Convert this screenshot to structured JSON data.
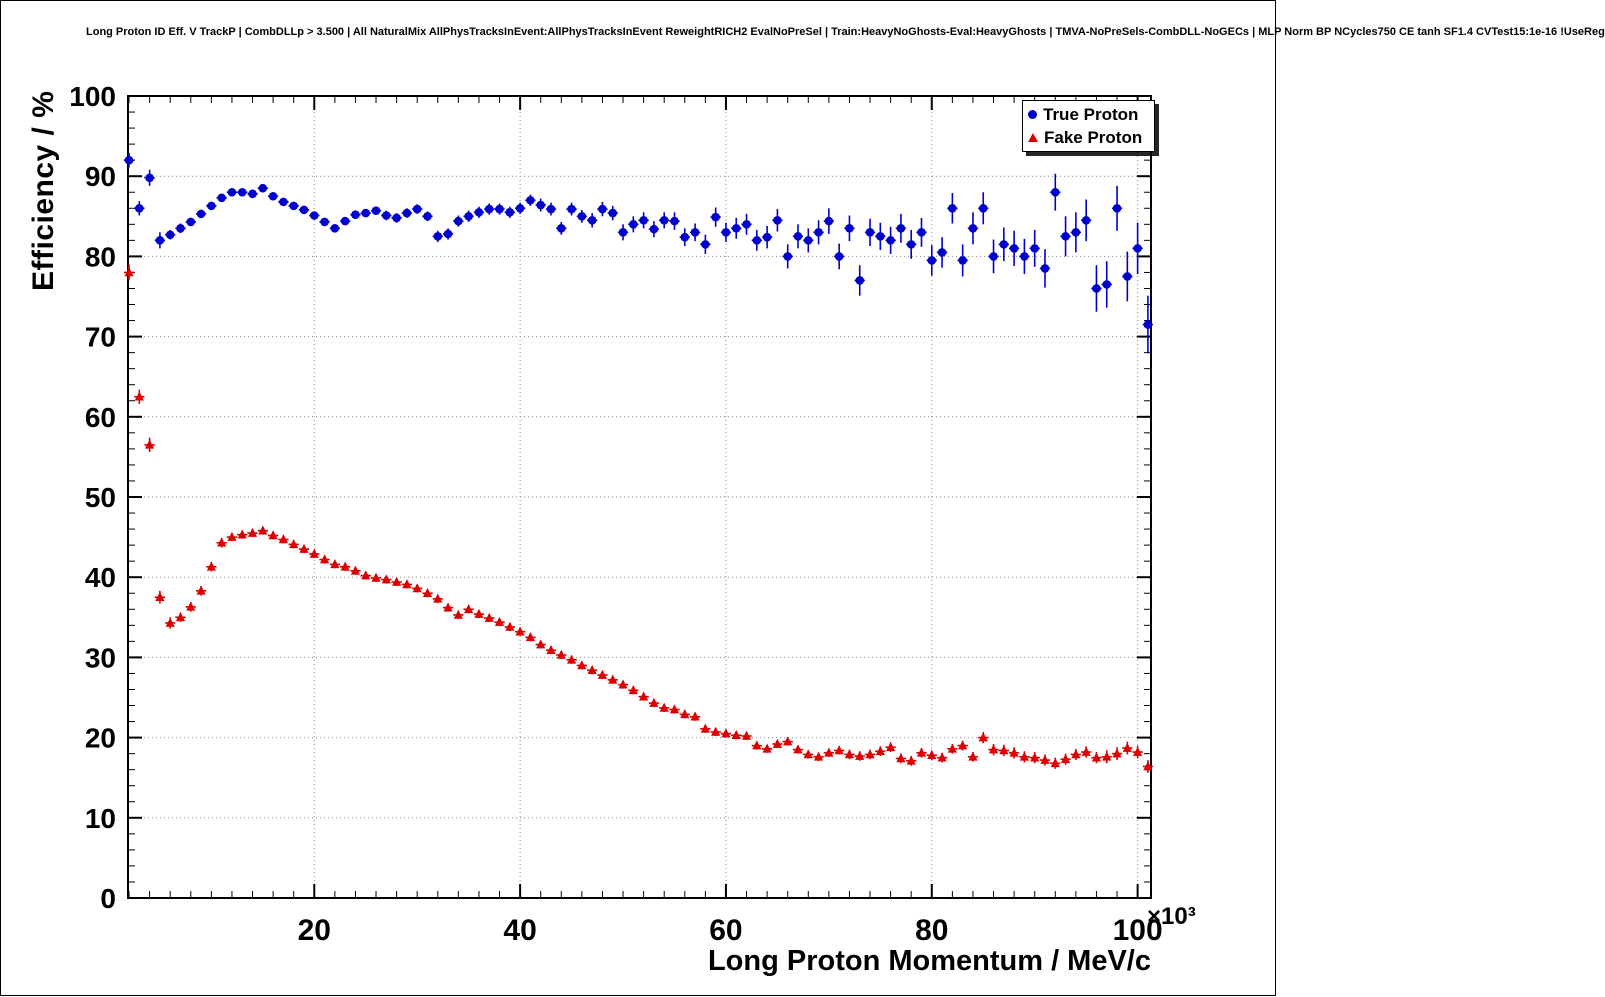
{
  "chart_data": {
    "type": "scatter",
    "title": "Long Proton ID Eff. V TrackP | CombDLLp > 3.500 | All NaturalMix AllPhysTracksInEvent:AllPhysTracksInEvent ReweightRICH2 EvalNoPreSel | Train:HeavyNoGhosts-Eval:HeavyGhosts | TMVA-NoPreSels-CombDLL-NoGECs | MLP Norm BP NCycles750 CE tanh SF1.4 CVTest15:1e-16 !UseReg",
    "xlabel": "Long Proton Momentum / MeV/c",
    "ylabel": "Efficiency / %",
    "x_multiplier": "×10³",
    "x_unit_scale": 1000,
    "xlim": [
      1.9,
      101.3
    ],
    "ylim": [
      0,
      100
    ],
    "xticks": [
      20,
      40,
      60,
      80,
      100
    ],
    "yticks": [
      0,
      10,
      20,
      30,
      40,
      50,
      60,
      70,
      80,
      90,
      100
    ],
    "minor_tick_step_x": 2,
    "minor_tick_step_y": 2,
    "grid": true,
    "legend_position": "top-right",
    "bin_half_width": 0.5,
    "colors": {
      "true_proton": "#0000cc",
      "fake_proton": "#dd0000",
      "grid": "#888888"
    },
    "series": [
      {
        "name": "True Proton",
        "marker": "circle",
        "color_key": "true_proton",
        "points": [
          [
            2,
            92.0,
            0.9
          ],
          [
            3,
            86.0,
            0.9
          ],
          [
            4,
            89.8,
            1.0
          ],
          [
            5,
            82.0,
            1.0
          ],
          [
            6,
            82.7,
            0.6
          ],
          [
            7,
            83.5,
            0.6
          ],
          [
            8,
            84.3,
            0.5
          ],
          [
            9,
            85.3,
            0.5
          ],
          [
            10,
            86.3,
            0.5
          ],
          [
            11,
            87.3,
            0.5
          ],
          [
            12,
            88.0,
            0.5
          ],
          [
            13,
            88.0,
            0.5
          ],
          [
            14,
            87.8,
            0.5
          ],
          [
            15,
            88.5,
            0.5
          ],
          [
            16,
            87.5,
            0.5
          ],
          [
            17,
            86.8,
            0.5
          ],
          [
            18,
            86.3,
            0.5
          ],
          [
            19,
            85.8,
            0.5
          ],
          [
            20,
            85.1,
            0.5
          ],
          [
            21,
            84.3,
            0.5
          ],
          [
            22,
            83.5,
            0.5
          ],
          [
            23,
            84.4,
            0.5
          ],
          [
            24,
            85.2,
            0.5
          ],
          [
            25,
            85.4,
            0.5
          ],
          [
            26,
            85.7,
            0.5
          ],
          [
            27,
            85.1,
            0.6
          ],
          [
            28,
            84.8,
            0.6
          ],
          [
            29,
            85.4,
            0.6
          ],
          [
            30,
            85.9,
            0.6
          ],
          [
            31,
            85.0,
            0.6
          ],
          [
            32,
            82.5,
            0.7
          ],
          [
            33,
            82.8,
            0.7
          ],
          [
            34,
            84.4,
            0.7
          ],
          [
            35,
            85.0,
            0.7
          ],
          [
            36,
            85.5,
            0.7
          ],
          [
            37,
            85.9,
            0.7
          ],
          [
            38,
            85.9,
            0.7
          ],
          [
            39,
            85.5,
            0.7
          ],
          [
            40,
            86.0,
            0.7
          ],
          [
            41,
            87.0,
            0.7
          ],
          [
            42,
            86.4,
            0.8
          ],
          [
            43,
            85.9,
            0.8
          ],
          [
            44,
            83.5,
            0.8
          ],
          [
            45,
            85.9,
            0.8
          ],
          [
            46,
            85.0,
            0.8
          ],
          [
            47,
            84.5,
            0.9
          ],
          [
            48,
            85.9,
            0.9
          ],
          [
            49,
            85.4,
            0.9
          ],
          [
            50,
            83.0,
            1.0
          ],
          [
            51,
            84.0,
            1.0
          ],
          [
            52,
            84.5,
            1.0
          ],
          [
            53,
            83.4,
            1.0
          ],
          [
            54,
            84.5,
            1.0
          ],
          [
            55,
            84.4,
            1.1
          ],
          [
            56,
            82.4,
            1.1
          ],
          [
            57,
            83.0,
            1.1
          ],
          [
            58,
            81.5,
            1.2
          ],
          [
            59,
            84.9,
            1.2
          ],
          [
            60,
            83.0,
            1.2
          ],
          [
            61,
            83.5,
            1.3
          ],
          [
            62,
            84.0,
            1.3
          ],
          [
            63,
            82.0,
            1.3
          ],
          [
            64,
            82.4,
            1.4
          ],
          [
            65,
            84.5,
            1.4
          ],
          [
            66,
            80.0,
            1.5
          ],
          [
            67,
            82.5,
            1.5
          ],
          [
            68,
            82.0,
            1.5
          ],
          [
            69,
            83.0,
            1.5
          ],
          [
            70,
            84.4,
            1.6
          ],
          [
            71,
            80.0,
            1.6
          ],
          [
            72,
            83.5,
            1.6
          ],
          [
            73,
            77.0,
            1.9
          ],
          [
            74,
            83.0,
            1.7
          ],
          [
            75,
            82.5,
            1.7
          ],
          [
            76,
            82.0,
            1.7
          ],
          [
            77,
            83.5,
            1.8
          ],
          [
            78,
            81.5,
            1.8
          ],
          [
            79,
            83.0,
            1.8
          ],
          [
            80,
            79.5,
            1.9
          ],
          [
            81,
            80.5,
            1.9
          ],
          [
            82,
            86.0,
            1.9
          ],
          [
            83,
            79.5,
            2.0
          ],
          [
            84,
            83.5,
            2.0
          ],
          [
            85,
            86.0,
            2.0
          ],
          [
            86,
            80.0,
            2.1
          ],
          [
            87,
            81.5,
            2.1
          ],
          [
            88,
            81.0,
            2.2
          ],
          [
            89,
            80.0,
            2.2
          ],
          [
            90,
            81.0,
            2.3
          ],
          [
            91,
            78.5,
            2.4
          ],
          [
            92,
            88.0,
            2.3
          ],
          [
            93,
            82.5,
            2.5
          ],
          [
            94,
            83.0,
            2.5
          ],
          [
            95,
            84.5,
            2.6
          ],
          [
            96,
            76.0,
            2.9
          ],
          [
            97,
            76.5,
            2.9
          ],
          [
            98,
            86.0,
            2.8
          ],
          [
            99,
            77.5,
            3.1
          ],
          [
            100,
            81.0,
            3.2
          ],
          [
            101,
            71.5,
            3.6
          ]
        ]
      },
      {
        "name": "Fake Proton",
        "marker": "triangle",
        "color_key": "fake_proton",
        "points": [
          [
            2,
            78.0,
            1.0
          ],
          [
            3,
            62.5,
            0.9
          ],
          [
            4,
            56.5,
            0.9
          ],
          [
            5,
            37.5,
            0.8
          ],
          [
            6,
            34.3,
            0.7
          ],
          [
            7,
            35.0,
            0.6
          ],
          [
            8,
            36.3,
            0.6
          ],
          [
            9,
            38.3,
            0.6
          ],
          [
            10,
            41.3,
            0.6
          ],
          [
            11,
            44.3,
            0.6
          ],
          [
            12,
            45.0,
            0.5
          ],
          [
            13,
            45.3,
            0.5
          ],
          [
            14,
            45.5,
            0.5
          ],
          [
            15,
            45.8,
            0.5
          ],
          [
            16,
            45.2,
            0.5
          ],
          [
            17,
            44.7,
            0.5
          ],
          [
            18,
            44.1,
            0.5
          ],
          [
            19,
            43.5,
            0.5
          ],
          [
            20,
            42.9,
            0.5
          ],
          [
            21,
            42.2,
            0.5
          ],
          [
            22,
            41.6,
            0.5
          ],
          [
            23,
            41.3,
            0.5
          ],
          [
            24,
            40.8,
            0.5
          ],
          [
            25,
            40.2,
            0.5
          ],
          [
            26,
            39.9,
            0.5
          ],
          [
            27,
            39.7,
            0.5
          ],
          [
            28,
            39.4,
            0.5
          ],
          [
            29,
            39.1,
            0.5
          ],
          [
            30,
            38.6,
            0.5
          ],
          [
            31,
            38.0,
            0.5
          ],
          [
            32,
            37.3,
            0.5
          ],
          [
            33,
            36.2,
            0.5
          ],
          [
            34,
            35.3,
            0.5
          ],
          [
            35,
            36.0,
            0.5
          ],
          [
            36,
            35.4,
            0.5
          ],
          [
            37,
            34.9,
            0.5
          ],
          [
            38,
            34.4,
            0.5
          ],
          [
            39,
            33.8,
            0.5
          ],
          [
            40,
            33.2,
            0.5
          ],
          [
            41,
            32.5,
            0.5
          ],
          [
            42,
            31.6,
            0.5
          ],
          [
            43,
            30.9,
            0.5
          ],
          [
            44,
            30.3,
            0.5
          ],
          [
            45,
            29.7,
            0.5
          ],
          [
            46,
            29.0,
            0.5
          ],
          [
            47,
            28.4,
            0.5
          ],
          [
            48,
            27.8,
            0.5
          ],
          [
            49,
            27.2,
            0.5
          ],
          [
            50,
            26.6,
            0.5
          ],
          [
            51,
            25.9,
            0.5
          ],
          [
            52,
            25.1,
            0.5
          ],
          [
            53,
            24.3,
            0.5
          ],
          [
            54,
            23.7,
            0.5
          ],
          [
            55,
            23.5,
            0.5
          ],
          [
            56,
            22.9,
            0.5
          ],
          [
            57,
            22.6,
            0.5
          ],
          [
            58,
            21.1,
            0.5
          ],
          [
            59,
            20.7,
            0.5
          ],
          [
            60,
            20.5,
            0.5
          ],
          [
            61,
            20.3,
            0.5
          ],
          [
            62,
            20.2,
            0.5
          ],
          [
            63,
            19.0,
            0.5
          ],
          [
            64,
            18.6,
            0.5
          ],
          [
            65,
            19.2,
            0.5
          ],
          [
            66,
            19.5,
            0.5
          ],
          [
            67,
            18.5,
            0.5
          ],
          [
            68,
            17.9,
            0.5
          ],
          [
            69,
            17.6,
            0.5
          ],
          [
            70,
            18.1,
            0.5
          ],
          [
            71,
            18.4,
            0.5
          ],
          [
            72,
            17.9,
            0.6
          ],
          [
            73,
            17.7,
            0.6
          ],
          [
            74,
            17.9,
            0.6
          ],
          [
            75,
            18.3,
            0.6
          ],
          [
            76,
            18.8,
            0.6
          ],
          [
            77,
            17.4,
            0.6
          ],
          [
            78,
            17.1,
            0.6
          ],
          [
            79,
            18.1,
            0.6
          ],
          [
            80,
            17.8,
            0.6
          ],
          [
            81,
            17.5,
            0.6
          ],
          [
            82,
            18.6,
            0.6
          ],
          [
            83,
            19.0,
            0.6
          ],
          [
            84,
            17.6,
            0.6
          ],
          [
            85,
            20.0,
            0.7
          ],
          [
            86,
            18.5,
            0.7
          ],
          [
            87,
            18.4,
            0.7
          ],
          [
            88,
            18.1,
            0.7
          ],
          [
            89,
            17.6,
            0.7
          ],
          [
            90,
            17.5,
            0.7
          ],
          [
            91,
            17.2,
            0.7
          ],
          [
            92,
            16.8,
            0.7
          ],
          [
            93,
            17.3,
            0.7
          ],
          [
            94,
            17.9,
            0.7
          ],
          [
            95,
            18.2,
            0.7
          ],
          [
            96,
            17.5,
            0.7
          ],
          [
            97,
            17.6,
            0.8
          ],
          [
            98,
            18.0,
            0.8
          ],
          [
            99,
            18.7,
            0.8
          ],
          [
            100,
            18.2,
            0.8
          ],
          [
            101,
            16.4,
            0.8
          ]
        ]
      }
    ]
  }
}
